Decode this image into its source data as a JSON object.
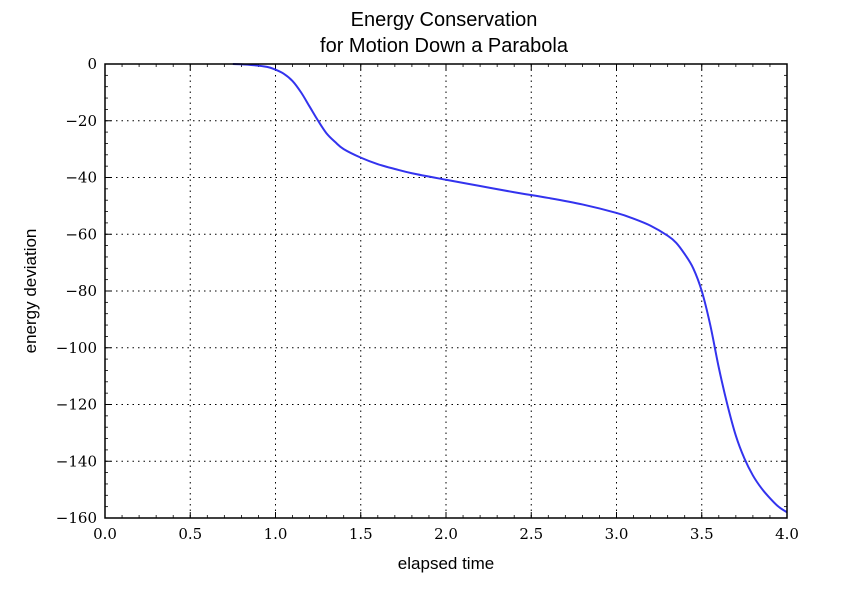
{
  "chart_data": {
    "type": "line",
    "title": [
      "Energy Conservation",
      "for Motion Down a Parabola"
    ],
    "xlabel": "elapsed time",
    "ylabel": "energy deviation",
    "xlim": [
      0.0,
      4.0
    ],
    "ylim": [
      -160,
      0
    ],
    "xticks": [
      "0.0",
      "0.5",
      "1.0",
      "1.5",
      "2.0",
      "2.5",
      "3.0",
      "3.5",
      "4.0"
    ],
    "yticks": [
      "0",
      "−20",
      "−40",
      "−60",
      "−80",
      "−100",
      "−120",
      "−140",
      "−160"
    ],
    "grid": true,
    "color": "#3333ee",
    "series": [
      {
        "x": [
          0.75,
          0.85,
          0.95,
          1.0,
          1.05,
          1.1,
          1.15,
          1.2,
          1.25,
          1.3,
          1.35,
          1.4,
          1.5,
          1.6,
          1.7,
          1.8,
          2.0,
          2.2,
          2.4,
          2.6,
          2.8,
          3.0,
          3.1,
          3.2,
          3.3,
          3.35,
          3.4,
          3.45,
          3.5,
          3.55,
          3.6,
          3.65,
          3.7,
          3.75,
          3.8,
          3.85,
          3.9,
          3.95,
          4.0
        ],
        "y": [
          0,
          -0.3,
          -1,
          -2,
          -3.5,
          -6,
          -10,
          -15,
          -20,
          -24.5,
          -27.5,
          -30,
          -33,
          -35.3,
          -37,
          -38.5,
          -40.8,
          -43,
          -45.2,
          -47.2,
          -49.5,
          -52.5,
          -54.5,
          -57,
          -60.5,
          -63,
          -67,
          -72,
          -80,
          -92,
          -107,
          -120,
          -131,
          -139,
          -145,
          -149.5,
          -153,
          -156,
          -158
        ]
      }
    ]
  }
}
